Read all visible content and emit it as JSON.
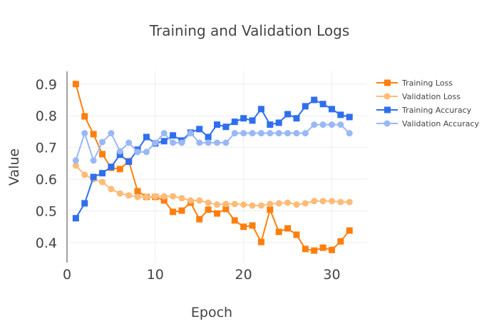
{
  "chart_data": {
    "type": "line",
    "title": "Training and Validation Logs",
    "xlabel": "Epoch",
    "ylabel": "Value",
    "xlim": [
      0,
      34
    ],
    "ylim": [
      0.337,
      0.94
    ],
    "xticks": [
      0,
      10,
      20,
      30
    ],
    "yticks": [
      0.4,
      0.5,
      0.6,
      0.7,
      0.8,
      0.9
    ],
    "grid": true,
    "legend_position": "top-right",
    "x": [
      1,
      2,
      3,
      4,
      5,
      6,
      7,
      8,
      9,
      10,
      11,
      12,
      13,
      14,
      15,
      16,
      17,
      18,
      19,
      20,
      21,
      22,
      23,
      24,
      25,
      26,
      27,
      28,
      29,
      30,
      31,
      32
    ],
    "series": [
      {
        "name": "Training Loss",
        "color": "#ff7f0e",
        "marker": "square",
        "values": [
          0.9,
          0.798,
          0.742,
          0.679,
          0.636,
          0.632,
          0.657,
          0.562,
          0.544,
          0.544,
          0.533,
          0.497,
          0.501,
          0.526,
          0.474,
          0.504,
          0.492,
          0.506,
          0.47,
          0.45,
          0.454,
          0.402,
          0.504,
          0.434,
          0.445,
          0.425,
          0.38,
          0.375,
          0.384,
          0.377,
          0.404,
          0.438
        ]
      },
      {
        "name": "Validation Loss",
        "color": "#ffbb78",
        "marker": "circle",
        "values": [
          0.643,
          0.614,
          0.6,
          0.591,
          0.569,
          0.555,
          0.549,
          0.544,
          0.544,
          0.546,
          0.546,
          0.546,
          0.54,
          0.533,
          0.533,
          0.526,
          0.52,
          0.522,
          0.522,
          0.52,
          0.517,
          0.517,
          0.522,
          0.524,
          0.526,
          0.52,
          0.524,
          0.531,
          0.531,
          0.531,
          0.528,
          0.528
        ]
      },
      {
        "name": "Training Accuracy",
        "color": "#2f6fed",
        "marker": "square",
        "values": [
          0.477,
          0.524,
          0.607,
          0.619,
          0.639,
          0.677,
          0.655,
          0.693,
          0.733,
          0.713,
          0.72,
          0.738,
          0.722,
          0.747,
          0.758,
          0.733,
          0.772,
          0.765,
          0.781,
          0.792,
          0.785,
          0.821,
          0.772,
          0.778,
          0.805,
          0.792,
          0.83,
          0.85,
          0.837,
          0.821,
          0.803,
          0.796
        ]
      },
      {
        "name": "Validation Accuracy",
        "color": "#9ab8f5",
        "marker": "circle",
        "values": [
          0.659,
          0.745,
          0.659,
          0.717,
          0.745,
          0.688,
          0.715,
          0.686,
          0.686,
          0.715,
          0.745,
          0.715,
          0.715,
          0.745,
          0.715,
          0.715,
          0.715,
          0.715,
          0.745,
          0.745,
          0.745,
          0.745,
          0.745,
          0.745,
          0.745,
          0.745,
          0.745,
          0.772,
          0.772,
          0.772,
          0.772,
          0.745
        ]
      }
    ]
  }
}
